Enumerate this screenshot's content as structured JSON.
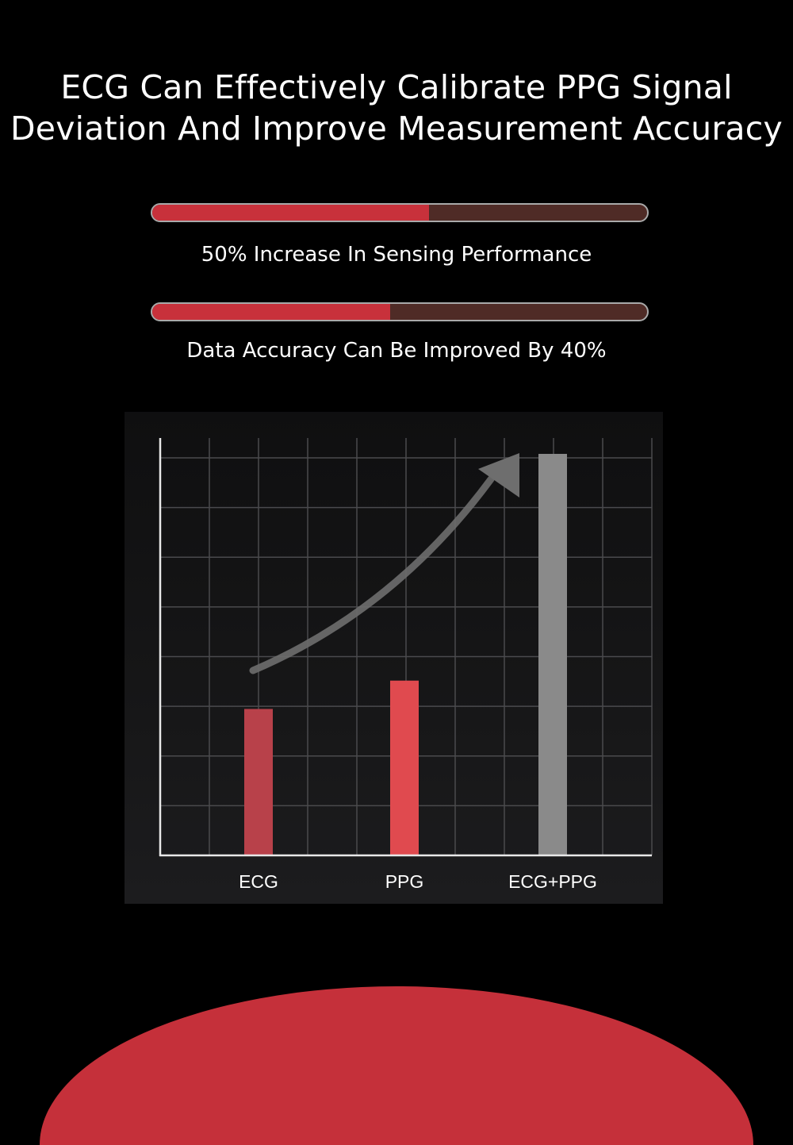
{
  "headline": {
    "line1": "ECG Can Effectively Calibrate PPG Signal",
    "line2": "Deviation And Improve Measurement Accuracy"
  },
  "stats": [
    {
      "label": "50% Increase In Sensing Performance",
      "progress": 0.56
    },
    {
      "label": "Data Accuracy Can Be Improved By 40%",
      "progress": 0.48
    }
  ],
  "chart_data": {
    "type": "bar",
    "categories": [
      "ECG",
      "PPG",
      "ECG+PPG"
    ],
    "values": [
      31,
      37,
      85
    ],
    "ylim": [
      0,
      85
    ],
    "grid": true,
    "legend": "none",
    "trend_arrow": true,
    "colors": [
      "#b8414a",
      "#e04a4f",
      "#8a8a8a"
    ],
    "title": "",
    "xlabel": "",
    "ylabel": ""
  },
  "colors": {
    "background": "#000000",
    "accent_red": "#c8313b",
    "bar_track": "#4f2b26",
    "grid": "#4a4a4d",
    "arrow": "#6e6e6e"
  }
}
